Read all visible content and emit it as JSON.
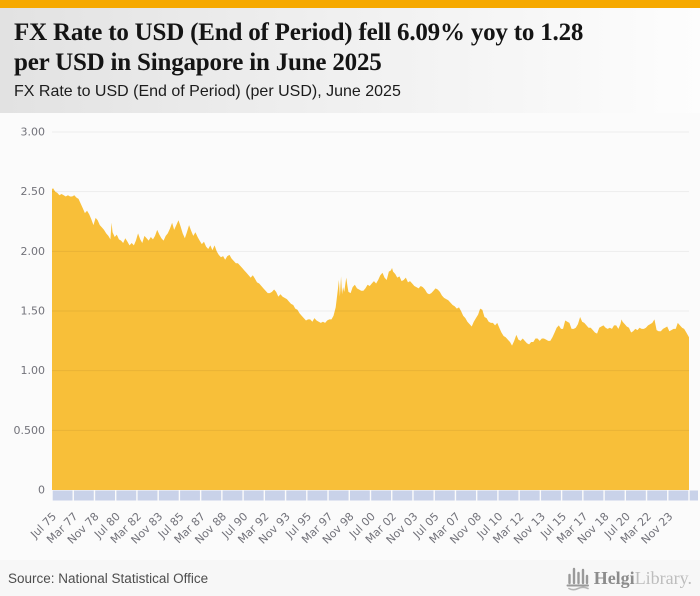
{
  "page": {
    "accent_bar_color": "#f6a900",
    "background": "#f7f7f7"
  },
  "header": {
    "title": "FX Rate to USD (End of Period) fell 6.09% yoy to 1.28 per USD in Singapore in June 2025",
    "title_line1": "FX Rate to USD (End of Period) fell 6.09% yoy to 1.28",
    "title_line2": "per USD in Singapore in June 2025",
    "subtitle": "FX Rate to USD (End of Period) (per USD), June 2025"
  },
  "chart_data": {
    "type": "area",
    "title": "FX Rate to USD (End of Period) (per USD), June 2025",
    "series_name": "FX Rate to USD (End of Period)",
    "country": "Singapore",
    "unit": "per USD",
    "latest_period": "June 2025",
    "latest_value": 1.28,
    "yoy_change_pct": -6.09,
    "fill_color": "#f8bf39",
    "axis_band_color": "#c9d2e9",
    "grid_color": "rgba(0,0,0,0.06)",
    "tick_text_color": "#72727a",
    "grid": true,
    "legend": false,
    "xlabel": "",
    "ylabel": "",
    "ylim": [
      0,
      3
    ],
    "xlim": [
      1975.5,
      2025.46
    ],
    "y_ticks": [
      {
        "label": "3.00",
        "value": 3.0
      },
      {
        "label": "2.50",
        "value": 2.5
      },
      {
        "label": "2.00",
        "value": 2.0
      },
      {
        "label": "1.50",
        "value": 1.5
      },
      {
        "label": "1.00",
        "value": 1.0
      },
      {
        "label": "0.500",
        "value": 0.5
      },
      {
        "label": "0",
        "value": 0.0
      }
    ],
    "x_ticks": [
      {
        "label": "Jul 75",
        "value": 1975.5
      },
      {
        "label": "Mar 77",
        "value": 1977.167
      },
      {
        "label": "Nov 78",
        "value": 1978.833
      },
      {
        "label": "Jul 80",
        "value": 1980.5
      },
      {
        "label": "Mar 82",
        "value": 1982.167
      },
      {
        "label": "Nov 83",
        "value": 1983.833
      },
      {
        "label": "Jul 85",
        "value": 1985.5
      },
      {
        "label": "Mar 87",
        "value": 1987.167
      },
      {
        "label": "Nov 88",
        "value": 1988.833
      },
      {
        "label": "Jul 90",
        "value": 1990.5
      },
      {
        "label": "Mar 92",
        "value": 1992.167
      },
      {
        "label": "Nov 93",
        "value": 1993.833
      },
      {
        "label": "Jul 95",
        "value": 1995.5
      },
      {
        "label": "Mar 97",
        "value": 1997.167
      },
      {
        "label": "Nov 98",
        "value": 1998.833
      },
      {
        "label": "Jul 00",
        "value": 2000.5
      },
      {
        "label": "Mar 02",
        "value": 2002.167
      },
      {
        "label": "Nov 03",
        "value": 2003.833
      },
      {
        "label": "Jul 05",
        "value": 2005.5
      },
      {
        "label": "Mar 07",
        "value": 2007.167
      },
      {
        "label": "Nov 08",
        "value": 2008.833
      },
      {
        "label": "Jul 10",
        "value": 2010.5
      },
      {
        "label": "Mar 12",
        "value": 2012.167
      },
      {
        "label": "Nov 13",
        "value": 2013.833
      },
      {
        "label": "Jul 15",
        "value": 2015.5
      },
      {
        "label": "Mar 17",
        "value": 2017.167
      },
      {
        "label": "Nov 18",
        "value": 2018.833
      },
      {
        "label": "Jul 20",
        "value": 2020.5
      },
      {
        "label": "Mar 22",
        "value": 2022.167
      },
      {
        "label": "Nov 23",
        "value": 2023.833
      }
    ],
    "points": [
      [
        1975.5,
        2.52
      ],
      [
        1975.58,
        2.53
      ],
      [
        1975.75,
        2.5
      ],
      [
        1975.92,
        2.49
      ],
      [
        1976.08,
        2.47
      ],
      [
        1976.25,
        2.48
      ],
      [
        1976.42,
        2.47
      ],
      [
        1976.58,
        2.46
      ],
      [
        1976.75,
        2.47
      ],
      [
        1976.92,
        2.46
      ],
      [
        1977.08,
        2.46
      ],
      [
        1977.25,
        2.47
      ],
      [
        1977.42,
        2.45
      ],
      [
        1977.58,
        2.44
      ],
      [
        1977.75,
        2.4
      ],
      [
        1977.92,
        2.36
      ],
      [
        1978.08,
        2.32
      ],
      [
        1978.25,
        2.34
      ],
      [
        1978.42,
        2.31
      ],
      [
        1978.58,
        2.27
      ],
      [
        1978.75,
        2.22
      ],
      [
        1978.92,
        2.28
      ],
      [
        1979.08,
        2.26
      ],
      [
        1979.25,
        2.22
      ],
      [
        1979.42,
        2.2
      ],
      [
        1979.58,
        2.18
      ],
      [
        1979.75,
        2.15
      ],
      [
        1979.92,
        2.13
      ],
      [
        1980.08,
        2.1
      ],
      [
        1980.17,
        2.24
      ],
      [
        1980.25,
        2.16
      ],
      [
        1980.42,
        2.12
      ],
      [
        1980.58,
        2.14
      ],
      [
        1980.75,
        2.1
      ],
      [
        1980.92,
        2.09
      ],
      [
        1981.08,
        2.07
      ],
      [
        1981.25,
        2.11
      ],
      [
        1981.42,
        2.08
      ],
      [
        1981.58,
        2.05
      ],
      [
        1981.75,
        2.07
      ],
      [
        1981.92,
        2.05
      ],
      [
        1982.08,
        2.09
      ],
      [
        1982.25,
        2.15
      ],
      [
        1982.42,
        2.1
      ],
      [
        1982.58,
        2.07
      ],
      [
        1982.75,
        2.13
      ],
      [
        1982.92,
        2.11
      ],
      [
        1983.08,
        2.09
      ],
      [
        1983.25,
        2.12
      ],
      [
        1983.42,
        2.1
      ],
      [
        1983.58,
        2.13
      ],
      [
        1983.75,
        2.18
      ],
      [
        1983.92,
        2.14
      ],
      [
        1984.08,
        2.11
      ],
      [
        1984.25,
        2.09
      ],
      [
        1984.42,
        2.13
      ],
      [
        1984.58,
        2.15
      ],
      [
        1984.75,
        2.19
      ],
      [
        1984.92,
        2.24
      ],
      [
        1985.08,
        2.18
      ],
      [
        1985.25,
        2.22
      ],
      [
        1985.42,
        2.26
      ],
      [
        1985.58,
        2.21
      ],
      [
        1985.75,
        2.15
      ],
      [
        1985.92,
        2.11
      ],
      [
        1986.08,
        2.16
      ],
      [
        1986.25,
        2.22
      ],
      [
        1986.42,
        2.17
      ],
      [
        1986.58,
        2.13
      ],
      [
        1986.75,
        2.16
      ],
      [
        1986.92,
        2.12
      ],
      [
        1987.08,
        2.09
      ],
      [
        1987.25,
        2.06
      ],
      [
        1987.42,
        2.08
      ],
      [
        1987.58,
        2.04
      ],
      [
        1987.75,
        2.02
      ],
      [
        1987.92,
        2.05
      ],
      [
        1988.08,
        2.01
      ],
      [
        1988.25,
        2.05
      ],
      [
        1988.42,
        2.0
      ],
      [
        1988.58,
        1.97
      ],
      [
        1988.75,
        1.95
      ],
      [
        1988.92,
        1.96
      ],
      [
        1989.08,
        1.93
      ],
      [
        1989.25,
        1.96
      ],
      [
        1989.42,
        1.97
      ],
      [
        1989.58,
        1.94
      ],
      [
        1989.75,
        1.92
      ],
      [
        1989.92,
        1.9
      ],
      [
        1990.08,
        1.9
      ],
      [
        1990.25,
        1.88
      ],
      [
        1990.42,
        1.86
      ],
      [
        1990.58,
        1.84
      ],
      [
        1990.75,
        1.82
      ],
      [
        1990.92,
        1.8
      ],
      [
        1991.08,
        1.78
      ],
      [
        1991.25,
        1.8
      ],
      [
        1991.42,
        1.77
      ],
      [
        1991.58,
        1.74
      ],
      [
        1991.75,
        1.73
      ],
      [
        1991.92,
        1.71
      ],
      [
        1992.08,
        1.69
      ],
      [
        1992.25,
        1.67
      ],
      [
        1992.42,
        1.65
      ],
      [
        1992.58,
        1.65
      ],
      [
        1992.75,
        1.66
      ],
      [
        1992.92,
        1.68
      ],
      [
        1993.08,
        1.66
      ],
      [
        1993.25,
        1.62
      ],
      [
        1993.42,
        1.64
      ],
      [
        1993.58,
        1.62
      ],
      [
        1993.75,
        1.61
      ],
      [
        1993.92,
        1.6
      ],
      [
        1994.08,
        1.58
      ],
      [
        1994.25,
        1.56
      ],
      [
        1994.42,
        1.55
      ],
      [
        1994.58,
        1.52
      ],
      [
        1994.75,
        1.51
      ],
      [
        1994.92,
        1.48
      ],
      [
        1995.08,
        1.46
      ],
      [
        1995.25,
        1.44
      ],
      [
        1995.42,
        1.42
      ],
      [
        1995.58,
        1.43
      ],
      [
        1995.75,
        1.43
      ],
      [
        1995.92,
        1.41
      ],
      [
        1996.08,
        1.44
      ],
      [
        1996.25,
        1.42
      ],
      [
        1996.42,
        1.41
      ],
      [
        1996.58,
        1.4
      ],
      [
        1996.75,
        1.41
      ],
      [
        1996.92,
        1.4
      ],
      [
        1997.08,
        1.42
      ],
      [
        1997.25,
        1.43
      ],
      [
        1997.42,
        1.43
      ],
      [
        1997.58,
        1.46
      ],
      [
        1997.75,
        1.53
      ],
      [
        1997.92,
        1.68
      ],
      [
        1998.0,
        1.76
      ],
      [
        1998.08,
        1.62
      ],
      [
        1998.17,
        1.79
      ],
      [
        1998.25,
        1.64
      ],
      [
        1998.33,
        1.7
      ],
      [
        1998.42,
        1.66
      ],
      [
        1998.5,
        1.72
      ],
      [
        1998.58,
        1.78
      ],
      [
        1998.67,
        1.71
      ],
      [
        1998.75,
        1.66
      ],
      [
        1998.92,
        1.65
      ],
      [
        1999.08,
        1.7
      ],
      [
        1999.25,
        1.72
      ],
      [
        1999.42,
        1.69
      ],
      [
        1999.58,
        1.68
      ],
      [
        1999.75,
        1.67
      ],
      [
        1999.92,
        1.67
      ],
      [
        2000.08,
        1.69
      ],
      [
        2000.25,
        1.72
      ],
      [
        2000.42,
        1.71
      ],
      [
        2000.58,
        1.73
      ],
      [
        2000.75,
        1.75
      ],
      [
        2000.92,
        1.73
      ],
      [
        2001.08,
        1.76
      ],
      [
        2001.25,
        1.8
      ],
      [
        2001.42,
        1.82
      ],
      [
        2001.58,
        1.78
      ],
      [
        2001.75,
        1.76
      ],
      [
        2001.92,
        1.83
      ],
      [
        2002.08,
        1.84
      ],
      [
        2002.17,
        1.86
      ],
      [
        2002.25,
        1.83
      ],
      [
        2002.42,
        1.81
      ],
      [
        2002.58,
        1.78
      ],
      [
        2002.75,
        1.79
      ],
      [
        2002.92,
        1.75
      ],
      [
        2003.08,
        1.76
      ],
      [
        2003.25,
        1.78
      ],
      [
        2003.42,
        1.74
      ],
      [
        2003.58,
        1.75
      ],
      [
        2003.75,
        1.73
      ],
      [
        2003.92,
        1.71
      ],
      [
        2004.08,
        1.7
      ],
      [
        2004.25,
        1.69
      ],
      [
        2004.42,
        1.71
      ],
      [
        2004.58,
        1.7
      ],
      [
        2004.75,
        1.68
      ],
      [
        2004.92,
        1.65
      ],
      [
        2005.08,
        1.64
      ],
      [
        2005.25,
        1.65
      ],
      [
        2005.42,
        1.67
      ],
      [
        2005.58,
        1.69
      ],
      [
        2005.75,
        1.68
      ],
      [
        2005.92,
        1.66
      ],
      [
        2006.08,
        1.63
      ],
      [
        2006.25,
        1.61
      ],
      [
        2006.42,
        1.6
      ],
      [
        2006.58,
        1.59
      ],
      [
        2006.75,
        1.57
      ],
      [
        2006.92,
        1.55
      ],
      [
        2007.08,
        1.54
      ],
      [
        2007.25,
        1.52
      ],
      [
        2007.42,
        1.53
      ],
      [
        2007.58,
        1.5
      ],
      [
        2007.75,
        1.46
      ],
      [
        2007.92,
        1.44
      ],
      [
        2008.08,
        1.41
      ],
      [
        2008.25,
        1.39
      ],
      [
        2008.42,
        1.37
      ],
      [
        2008.58,
        1.41
      ],
      [
        2008.75,
        1.44
      ],
      [
        2008.92,
        1.47
      ],
      [
        2009.08,
        1.52
      ],
      [
        2009.25,
        1.51
      ],
      [
        2009.42,
        1.45
      ],
      [
        2009.58,
        1.44
      ],
      [
        2009.75,
        1.41
      ],
      [
        2009.92,
        1.4
      ],
      [
        2010.08,
        1.4
      ],
      [
        2010.25,
        1.38
      ],
      [
        2010.42,
        1.4
      ],
      [
        2010.58,
        1.36
      ],
      [
        2010.75,
        1.32
      ],
      [
        2010.92,
        1.29
      ],
      [
        2011.08,
        1.28
      ],
      [
        2011.25,
        1.26
      ],
      [
        2011.42,
        1.24
      ],
      [
        2011.58,
        1.21
      ],
      [
        2011.75,
        1.25
      ],
      [
        2011.92,
        1.3
      ],
      [
        2012.08,
        1.26
      ],
      [
        2012.25,
        1.25
      ],
      [
        2012.42,
        1.27
      ],
      [
        2012.58,
        1.25
      ],
      [
        2012.75,
        1.23
      ],
      [
        2012.92,
        1.22
      ],
      [
        2013.08,
        1.24
      ],
      [
        2013.25,
        1.24
      ],
      [
        2013.42,
        1.27
      ],
      [
        2013.58,
        1.27
      ],
      [
        2013.75,
        1.25
      ],
      [
        2013.92,
        1.27
      ],
      [
        2014.08,
        1.27
      ],
      [
        2014.25,
        1.26
      ],
      [
        2014.42,
        1.25
      ],
      [
        2014.58,
        1.25
      ],
      [
        2014.75,
        1.28
      ],
      [
        2014.92,
        1.32
      ],
      [
        2015.08,
        1.36
      ],
      [
        2015.25,
        1.38
      ],
      [
        2015.42,
        1.35
      ],
      [
        2015.58,
        1.35
      ],
      [
        2015.75,
        1.42
      ],
      [
        2015.92,
        1.41
      ],
      [
        2016.08,
        1.4
      ],
      [
        2016.25,
        1.35
      ],
      [
        2016.42,
        1.35
      ],
      [
        2016.58,
        1.36
      ],
      [
        2016.75,
        1.39
      ],
      [
        2016.92,
        1.45
      ],
      [
        2017.08,
        1.41
      ],
      [
        2017.25,
        1.4
      ],
      [
        2017.42,
        1.38
      ],
      [
        2017.58,
        1.36
      ],
      [
        2017.75,
        1.36
      ],
      [
        2017.92,
        1.34
      ],
      [
        2018.08,
        1.32
      ],
      [
        2018.25,
        1.31
      ],
      [
        2018.42,
        1.36
      ],
      [
        2018.58,
        1.37
      ],
      [
        2018.75,
        1.38
      ],
      [
        2018.92,
        1.36
      ],
      [
        2019.08,
        1.35
      ],
      [
        2019.25,
        1.36
      ],
      [
        2019.42,
        1.35
      ],
      [
        2019.58,
        1.38
      ],
      [
        2019.75,
        1.38
      ],
      [
        2019.92,
        1.35
      ],
      [
        2020.08,
        1.39
      ],
      [
        2020.17,
        1.43
      ],
      [
        2020.25,
        1.41
      ],
      [
        2020.42,
        1.39
      ],
      [
        2020.58,
        1.37
      ],
      [
        2020.75,
        1.36
      ],
      [
        2020.92,
        1.32
      ],
      [
        2021.08,
        1.33
      ],
      [
        2021.25,
        1.35
      ],
      [
        2021.42,
        1.34
      ],
      [
        2021.58,
        1.36
      ],
      [
        2021.75,
        1.35
      ],
      [
        2021.92,
        1.35
      ],
      [
        2022.08,
        1.36
      ],
      [
        2022.25,
        1.38
      ],
      [
        2022.42,
        1.39
      ],
      [
        2022.58,
        1.4
      ],
      [
        2022.75,
        1.43
      ],
      [
        2022.92,
        1.34
      ],
      [
        2023.08,
        1.33
      ],
      [
        2023.25,
        1.33
      ],
      [
        2023.42,
        1.35
      ],
      [
        2023.58,
        1.36
      ],
      [
        2023.75,
        1.37
      ],
      [
        2023.92,
        1.33
      ],
      [
        2024.08,
        1.34
      ],
      [
        2024.25,
        1.35
      ],
      [
        2024.42,
        1.35
      ],
      [
        2024.58,
        1.4
      ],
      [
        2024.75,
        1.38
      ],
      [
        2024.92,
        1.36
      ],
      [
        2025.08,
        1.35
      ],
      [
        2025.25,
        1.32
      ],
      [
        2025.46,
        1.28
      ]
    ]
  },
  "footer": {
    "source": "Source: National Statistical Office",
    "logo_bold": "Helgi",
    "logo_light": "Library."
  }
}
